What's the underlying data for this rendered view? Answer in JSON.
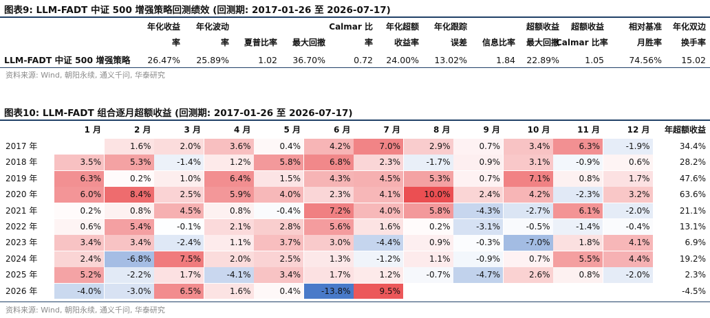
{
  "table1": {
    "title": "图表9:  LLM-FADT 中证 500 增强策略回测绩效 (回测期: 2017-01-26 至 2026-07-17)",
    "headers": [
      [
        "年化收益",
        "率"
      ],
      [
        "年化波动",
        "率"
      ],
      [
        "",
        "夏普比率"
      ],
      [
        "",
        "最大回撤"
      ],
      [
        "Calmar 比",
        "率"
      ],
      [
        "年化超额",
        "收益率"
      ],
      [
        "年化跟踪",
        "误差"
      ],
      [
        "",
        "信息比率"
      ],
      [
        "超额收益",
        "最大回撤"
      ],
      [
        "超额收益",
        "Calmar 比率"
      ],
      [
        "相对基准",
        "月胜率"
      ],
      [
        "年化双边",
        "换手率"
      ]
    ],
    "row_label": "LLM-FADT 中证 500 增强策略",
    "values": [
      "26.47%",
      "25.89%",
      "1.02",
      "36.70%",
      "0.72",
      "24.00%",
      "13.02%",
      "1.84",
      "22.89%",
      "1.05",
      "74.56%",
      "15.02"
    ],
    "source": "资料来源: Wind, 朝阳永续, 通义千问, 华泰研究"
  },
  "table2": {
    "title": "图表10:  LLM-FADT 组合逐月超额收益 (回测期: 2017-01-26 至 2026-07-17)",
    "headers": [
      "1 月",
      "2 月",
      "3 月",
      "4 月",
      "5 月",
      "6 月",
      "7 月",
      "8 月",
      "9 月",
      "10 月",
      "11 月",
      "12 月",
      "年超额收益"
    ],
    "rows": [
      {
        "year": "2017 年",
        "months": [
          null,
          1.6,
          2.0,
          3.6,
          0.4,
          4.2,
          7.0,
          2.9,
          0.7,
          3.4,
          6.3,
          -1.9
        ],
        "annual": "34.4%"
      },
      {
        "year": "2018 年",
        "months": [
          3.5,
          5.3,
          -1.4,
          1.2,
          5.8,
          6.8,
          2.3,
          -1.7,
          0.9,
          3.1,
          -0.9,
          0.6
        ],
        "annual": "28.2%"
      },
      {
        "year": "2019 年",
        "months": [
          6.3,
          0.2,
          1.0,
          6.4,
          1.5,
          4.3,
          4.5,
          5.3,
          0.7,
          7.1,
          0.8,
          1.7
        ],
        "annual": "47.6%"
      },
      {
        "year": "2020 年",
        "months": [
          6.0,
          8.4,
          2.5,
          5.9,
          4.0,
          2.3,
          4.1,
          10.0,
          2.4,
          4.2,
          -2.3,
          3.2
        ],
        "annual": "63.6%"
      },
      {
        "year": "2021 年",
        "months": [
          0.2,
          0.8,
          4.5,
          0.8,
          -0.4,
          7.2,
          4.0,
          5.8,
          -4.3,
          -2.7,
          6.1,
          -2.0
        ],
        "annual": "21.1%"
      },
      {
        "year": "2022 年",
        "months": [
          0.6,
          5.4,
          -0.1,
          2.1,
          2.8,
          5.6,
          1.6,
          0.2,
          -3.1,
          -0.5,
          -1.4,
          -0.4
        ],
        "annual": "13.1%"
      },
      {
        "year": "2023 年",
        "months": [
          3.4,
          3.4,
          -2.4,
          1.1,
          3.7,
          3.0,
          -4.4,
          0.9,
          -0.3,
          -7.0,
          1.8,
          4.1
        ],
        "annual": "6.9%"
      },
      {
        "year": "2024 年",
        "months": [
          2.4,
          -6.8,
          7.5,
          2.0,
          2.5,
          1.3,
          -1.2,
          1.1,
          -0.9,
          0.7,
          5.5,
          4.4
        ],
        "annual": "19.2%"
      },
      {
        "year": "2025 年",
        "months": [
          5.2,
          -2.2,
          1.7,
          -4.1,
          3.4,
          1.7,
          1.2,
          -0.7,
          -4.7,
          2.6,
          0.8,
          -2.0
        ],
        "annual": "2.3%"
      },
      {
        "year": "2026 年",
        "months": [
          -4.0,
          -3.0,
          6.5,
          1.6,
          0.4,
          -13.8,
          9.5,
          null,
          null,
          null,
          null,
          null
        ],
        "annual": "-4.5%"
      }
    ],
    "source": "资料来源: Wind, 朝阳永续, 通义千问, 华泰研究",
    "colors": {
      "positive": "#e8373a",
      "negative": "#3a6fc4"
    }
  }
}
